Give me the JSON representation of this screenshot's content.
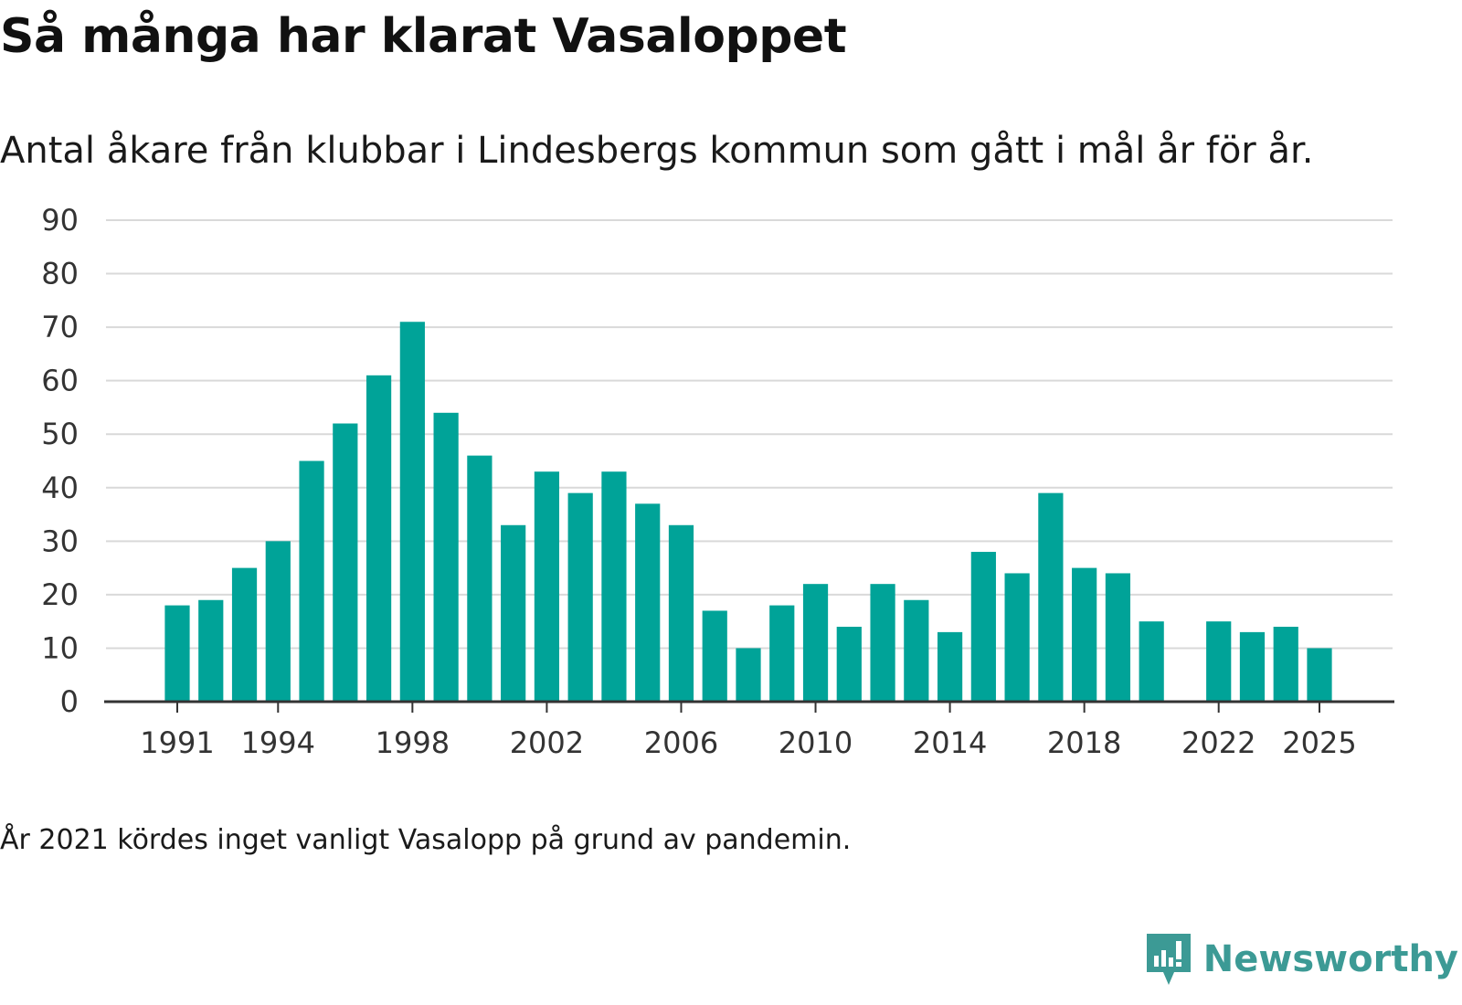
{
  "header": {
    "title": "Så många har klarat Vasaloppet",
    "subtitle": "Antal åkare från klubbar i Lindesbergs kommun som gått i mål år för år."
  },
  "footnote": "År 2021 kördes inget vanligt Vasalopp på grund av pandemin.",
  "brand": {
    "name": "Newsworthy",
    "icon": "newsworthy-logo-icon",
    "color": "#3c9a95"
  },
  "colors": {
    "bar": "#00a398",
    "grid": "#d9d9d9",
    "axis": "#333333"
  },
  "chart_data": {
    "type": "bar",
    "title": "Så många har klarat Vasaloppet",
    "subtitle": "Antal åkare från klubbar i Lindesbergs kommun som gått i mål år för år.",
    "xlabel": "",
    "ylabel": "",
    "ylim": [
      0,
      90
    ],
    "yticks": [
      0,
      10,
      20,
      30,
      40,
      50,
      60,
      70,
      80,
      90
    ],
    "xticks": [
      1991,
      1994,
      1998,
      2002,
      2006,
      2010,
      2014,
      2018,
      2022,
      2025
    ],
    "grid": true,
    "categories": [
      1991,
      1992,
      1993,
      1994,
      1995,
      1996,
      1997,
      1998,
      1999,
      2000,
      2001,
      2002,
      2003,
      2004,
      2005,
      2006,
      2007,
      2008,
      2009,
      2010,
      2011,
      2012,
      2013,
      2014,
      2015,
      2016,
      2017,
      2018,
      2019,
      2020,
      2021,
      2022,
      2023,
      2024,
      2025
    ],
    "values": [
      18,
      19,
      25,
      30,
      45,
      52,
      61,
      71,
      54,
      46,
      33,
      43,
      39,
      43,
      37,
      33,
      17,
      10,
      18,
      22,
      14,
      22,
      19,
      13,
      28,
      24,
      39,
      25,
      24,
      15,
      null,
      15,
      13,
      14,
      10
    ]
  }
}
